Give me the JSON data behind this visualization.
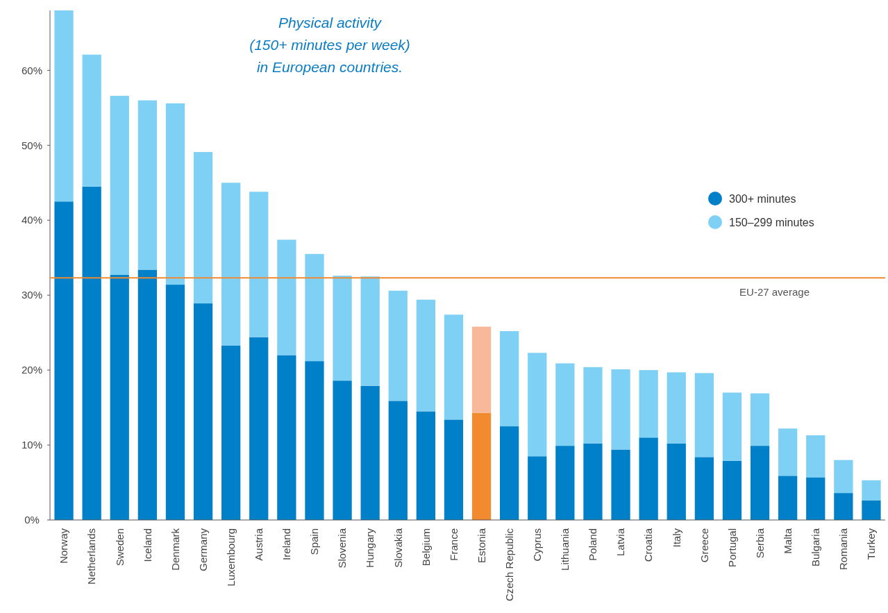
{
  "chart_data": {
    "type": "bar",
    "stacked": true,
    "title": "Physical activity\n(150+ minutes per week)\nin European countries.",
    "categories": [
      "Norway",
      "Netherlands",
      "Sweden",
      "Iceland",
      "Denmark",
      "Germany",
      "Luxembourg",
      "Austria",
      "Ireland",
      "Spain",
      "Slovenia",
      "Hungary",
      "Slovakia",
      "Belgium",
      "France",
      "Estonia",
      "Czech Republic",
      "Cyprus",
      "Lithuania",
      "Poland",
      "Latvia",
      "Croatia",
      "Italy",
      "Greece",
      "Portugal",
      "Serbia",
      "Malta",
      "Bulgaria",
      "Romania",
      "Turkey"
    ],
    "series": [
      {
        "name": "300+ minutes",
        "color": "#0080c8",
        "colors": [
          "#0080c8",
          "#0080c8",
          "#0080c8",
          "#0080c8",
          "#0080c8",
          "#0080c8",
          "#0080c8",
          "#0080c8",
          "#0080c8",
          "#0080c8",
          "#0080c8",
          "#0080c8",
          "#0080c8",
          "#0080c8",
          "#0080c8",
          "#f28a30",
          "#0080c8",
          "#0080c8",
          "#0080c8",
          "#0080c8",
          "#0080c8",
          "#0080c8",
          "#0080c8",
          "#0080c8",
          "#0080c8",
          "#0080c8",
          "#0080c8",
          "#0080c8",
          "#0080c8",
          "#0080c8"
        ],
        "values": [
          42.5,
          44.5,
          32.7,
          33.4,
          31.4,
          28.9,
          23.3,
          24.4,
          22.0,
          21.2,
          18.6,
          17.9,
          15.9,
          14.5,
          13.4,
          14.3,
          12.5,
          8.5,
          9.9,
          10.2,
          9.4,
          11.0,
          10.2,
          8.4,
          7.9,
          9.9,
          5.9,
          5.7,
          3.6,
          2.6
        ]
      },
      {
        "name": "150–299 minutes",
        "color": "#7fd0f5",
        "colors": [
          "#7fd0f5",
          "#7fd0f5",
          "#7fd0f5",
          "#7fd0f5",
          "#7fd0f5",
          "#7fd0f5",
          "#7fd0f5",
          "#7fd0f5",
          "#7fd0f5",
          "#7fd0f5",
          "#7fd0f5",
          "#7fd0f5",
          "#7fd0f5",
          "#7fd0f5",
          "#7fd0f5",
          "#f7b99a",
          "#7fd0f5",
          "#7fd0f5",
          "#7fd0f5",
          "#7fd0f5",
          "#7fd0f5",
          "#7fd0f5",
          "#7fd0f5",
          "#7fd0f5",
          "#7fd0f5",
          "#7fd0f5",
          "#7fd0f5",
          "#7fd0f5",
          "#7fd0f5",
          "#7fd0f5"
        ],
        "values": [
          25.5,
          17.6,
          23.9,
          22.6,
          24.2,
          20.2,
          21.7,
          19.4,
          15.4,
          14.3,
          14.0,
          14.6,
          14.7,
          14.9,
          14.0,
          11.5,
          12.7,
          13.8,
          11.0,
          10.2,
          10.7,
          9.0,
          9.5,
          11.2,
          9.1,
          7.0,
          6.3,
          5.6,
          4.4,
          2.7
        ]
      }
    ],
    "ylim": [
      0,
      68
    ],
    "yticks": [
      {
        "value": 0,
        "label": "0%"
      },
      {
        "value": 10,
        "label": "10%"
      },
      {
        "value": 20,
        "label": "20%"
      },
      {
        "value": 30,
        "label": "30%"
      },
      {
        "value": 40,
        "label": "40%"
      },
      {
        "value": 50,
        "label": "50%"
      },
      {
        "value": 60,
        "label": "60%"
      }
    ],
    "ref_lines": [
      {
        "axis": "y",
        "value": 32.3,
        "label": "EU-27 average",
        "color": "#f08a30"
      }
    ],
    "legend": "right",
    "grid": false
  }
}
